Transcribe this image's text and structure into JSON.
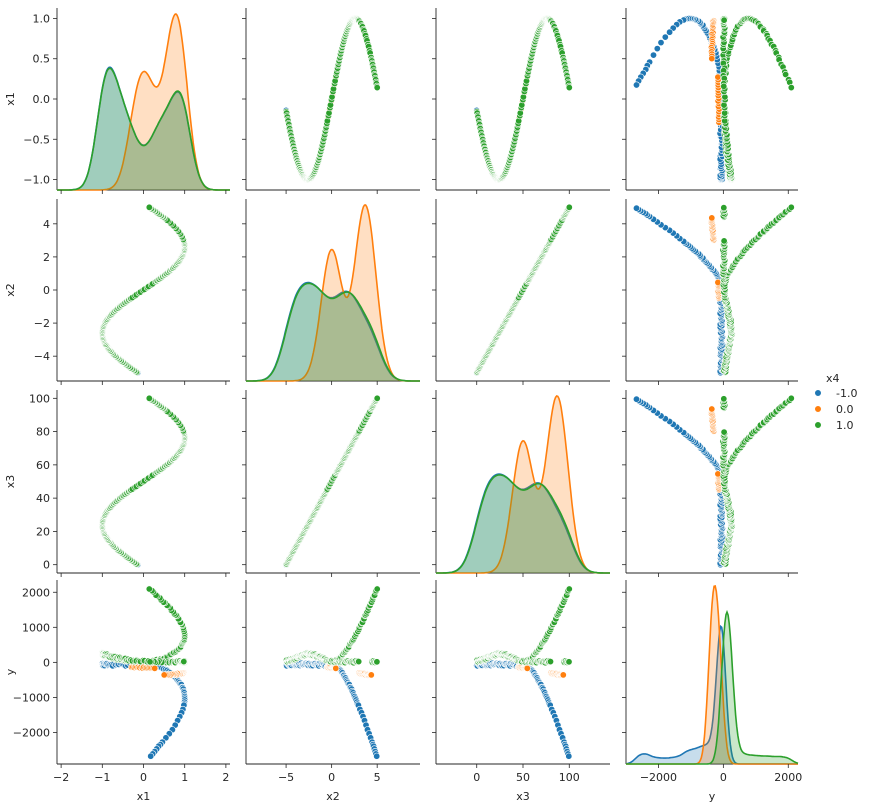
{
  "chart_data": {
    "type": "scatter",
    "kind": "pairplot",
    "variables": [
      "x1",
      "x2",
      "x3",
      "y"
    ],
    "axis_labels": {
      "x1": "x1",
      "x2": "x2",
      "x3": "x3",
      "y": "y"
    },
    "ranges": {
      "x1": [
        -2.1,
        2.1
      ],
      "x2": [
        -9.4,
        9.7
      ],
      "x3": [
        -44,
        144
      ],
      "y": [
        -3000,
        2300
      ]
    },
    "ticks": {
      "x1": [
        -2,
        -1,
        0,
        1,
        2
      ],
      "x2": [
        -5,
        0,
        5
      ],
      "x3": [
        0,
        50,
        100
      ],
      "y": [
        -2000,
        0,
        2000
      ]
    },
    "row_ticks": {
      "x1": [
        -1.0,
        -0.5,
        0.0,
        0.5,
        1.0
      ],
      "x2": [
        -4,
        -2,
        0,
        2,
        4
      ],
      "x3": [
        0,
        20,
        40,
        60,
        80,
        100
      ],
      "y": [
        -2000,
        -1000,
        0,
        1000,
        2000
      ]
    },
    "tick_labels": {
      "x1": [
        "−2",
        "−1",
        "0",
        "1",
        "2"
      ],
      "x2": [
        "−5",
        "0",
        "5"
      ],
      "x3": [
        "0",
        "50",
        "100"
      ],
      "y": [
        "−2000",
        "0",
        "2000"
      ]
    },
    "row_tick_labels": {
      "x1": [
        "−1.0",
        "−0.5",
        "0.0",
        "0.5",
        "1.0"
      ],
      "x2": [
        "−4",
        "−2",
        "0",
        "2",
        "4"
      ],
      "x3": [
        "0",
        "20",
        "40",
        "60",
        "80",
        "100"
      ],
      "y": [
        "−2000",
        "−1000",
        "0",
        "1000",
        "2000"
      ]
    },
    "hue": "x4",
    "legend": {
      "title": "x4",
      "placement": "right",
      "entries": [
        {
          "label": "-1.0",
          "color": "#1f77b4"
        },
        {
          "label": "0.0",
          "color": "#ff7f0e"
        },
        {
          "label": "1.0",
          "color": "#2ca02c"
        }
      ]
    },
    "relationship": {
      "x2_range": [
        -5,
        5
      ],
      "x1": "sin(0.6*x2)",
      "x3": "10*x2 + 50",
      "hue_rule": "0.0 where |x2| < 0.5 or 3 < x2 < 4.5 (y near 0, x1 > 0); -1.0 and 1.0 otherwise",
      "y_branches": {
        "-1.0": "descending branch to about -2700 at x2 = 5, plus a band near 0 for x1 > 0",
        "0.0": "small negative values near 0 (about -100 to -400)",
        "1.0": "ascending branch to about 2100 at x2 = 5, plus a band near 0"
      }
    },
    "grid": false
  }
}
